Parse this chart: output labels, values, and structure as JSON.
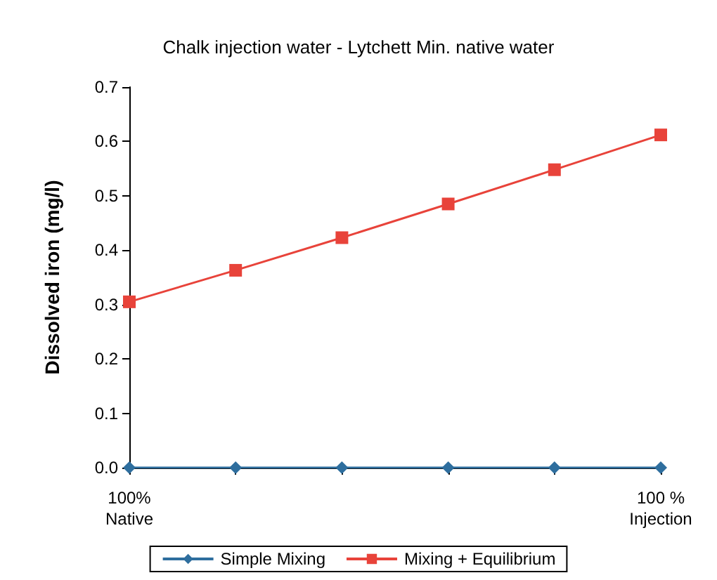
{
  "chart_data": {
    "type": "line",
    "title": "Chalk injection water - Lytchett Min. native water",
    "ylabel": "Dissolved iron (mg/l)",
    "categories": [
      "100%\nNative",
      null,
      null,
      null,
      null,
      "100 %\nInjection"
    ],
    "series": [
      {
        "name": "Simple Mixing",
        "color": "#2e6e9e",
        "marker": "diamond",
        "values": [
          0,
          0,
          0,
          0,
          0,
          0
        ]
      },
      {
        "name": "Mixing + Equilibrium",
        "color": "#e8433a",
        "marker": "square",
        "values": [
          0.305,
          0.363,
          0.423,
          0.485,
          0.548,
          0.612
        ]
      }
    ],
    "ylim": [
      0,
      0.7
    ],
    "yticks": [
      {
        "value": 0,
        "label": "0.0"
      },
      {
        "value": 0.1,
        "label": "0.1"
      },
      {
        "value": 0.2,
        "label": "0.2"
      },
      {
        "value": 0.3,
        "label": "0.3"
      },
      {
        "value": 0.4,
        "label": "0.4"
      },
      {
        "value": 0.5,
        "label": "0.5"
      },
      {
        "value": 0.6,
        "label": "0.6"
      },
      {
        "value": 0.7,
        "label": "0.7"
      }
    ],
    "grid": false,
    "legend": "bottom",
    "line_style": "solid"
  }
}
